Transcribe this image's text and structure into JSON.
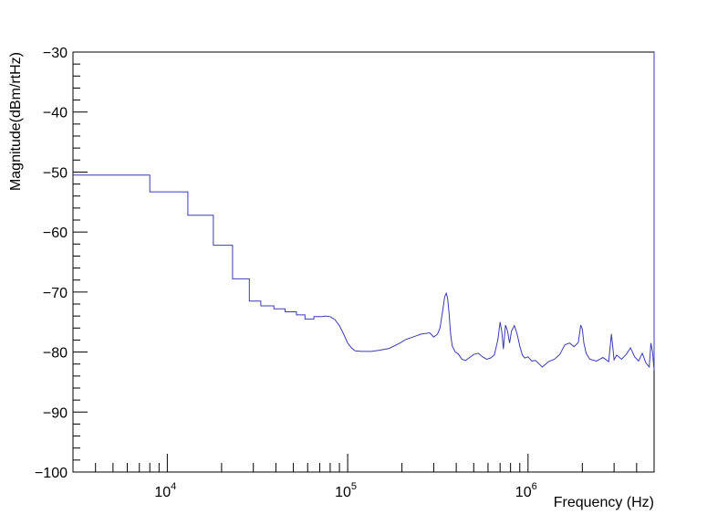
{
  "chart_data": {
    "type": "line",
    "xlabel": "Frequency (Hz)",
    "ylabel": "Magnitude(dBm/rtHz)",
    "x_scale": "log",
    "xlim": [
      3000,
      5000000
    ],
    "ylim": [
      -100,
      -30
    ],
    "y_ticks": [
      {
        "value": -30,
        "label": "−30"
      },
      {
        "value": -40,
        "label": "−40"
      },
      {
        "value": -50,
        "label": "−50"
      },
      {
        "value": -60,
        "label": "−60"
      },
      {
        "value": -70,
        "label": "−70"
      },
      {
        "value": -80,
        "label": "−80"
      },
      {
        "value": -90,
        "label": "−90"
      },
      {
        "value": -100,
        "label": "−100"
      }
    ],
    "x_ticks": [
      {
        "value": 10000,
        "base": "10",
        "exp": "4"
      },
      {
        "value": 100000,
        "base": "10",
        "exp": "5"
      },
      {
        "value": 1000000,
        "base": "10",
        "exp": "6"
      }
    ],
    "line_color": "#3b3bb3",
    "grid": false,
    "series": [
      {
        "x": [
          3000,
          8000,
          8000,
          13000,
          13000,
          18000,
          18000,
          23000,
          23000,
          28500,
          28500,
          33000,
          33000,
          39000,
          39000,
          45000,
          45000,
          52000,
          52000,
          58000,
          58000,
          65000,
          65000,
          72000,
          75000,
          80000,
          85000,
          90000,
          95000,
          100000,
          105000,
          110000,
          120000,
          135000,
          150000,
          170000,
          195000,
          210000,
          225000,
          240000,
          255000,
          270000,
          285000,
          300000,
          315000,
          325000,
          335000,
          345000,
          352000,
          358000,
          365000,
          372000,
          380000,
          395000,
          410000,
          430000,
          450000,
          470000,
          500000,
          530000,
          560000,
          590000,
          620000,
          650000,
          680000,
          700000,
          715000,
          730000,
          750000,
          770000,
          790000,
          810000,
          840000,
          870000,
          900000,
          930000,
          960000,
          1000000,
          1050000,
          1100000,
          1200000,
          1300000,
          1400000,
          1500000,
          1600000,
          1700000,
          1800000,
          1900000,
          1960000,
          2000000,
          2040000,
          2100000,
          2200000,
          2400000,
          2600000,
          2800000,
          2900000,
          3000000,
          3100000,
          3300000,
          3500000,
          3700000,
          3900000,
          4100000,
          4300000,
          4500000,
          4700000,
          4800000,
          4900000,
          5000000,
          5000000
        ],
        "y": [
          -50.5,
          -50.5,
          -53.3,
          -53.3,
          -57.2,
          -57.2,
          -62.2,
          -62.2,
          -67.8,
          -67.8,
          -71.5,
          -71.5,
          -72.3,
          -72.3,
          -72.8,
          -72.8,
          -73.3,
          -73.3,
          -73.8,
          -73.8,
          -74.5,
          -74.5,
          -74.1,
          -74.1,
          -74.0,
          -74.1,
          -74.6,
          -75.6,
          -77.0,
          -78.5,
          -79.3,
          -79.8,
          -79.9,
          -79.9,
          -79.7,
          -79.4,
          -78.5,
          -77.9,
          -77.6,
          -77.3,
          -77.0,
          -76.9,
          -76.8,
          -77.5,
          -77.0,
          -76.0,
          -73.5,
          -70.8,
          -70.2,
          -71.0,
          -73.5,
          -77.0,
          -79.0,
          -80.0,
          -80.3,
          -81.2,
          -81.4,
          -81.0,
          -80.4,
          -80.2,
          -80.8,
          -81.2,
          -81.0,
          -80.5,
          -78.0,
          -75.0,
          -76.5,
          -79.5,
          -75.5,
          -76.5,
          -78.5,
          -76.5,
          -75.6,
          -77.0,
          -79.0,
          -80.5,
          -81.0,
          -80.8,
          -81.5,
          -81.4,
          -82.5,
          -81.6,
          -81.2,
          -80.4,
          -78.8,
          -78.5,
          -79.1,
          -78.4,
          -75.5,
          -76.2,
          -78.5,
          -80.2,
          -81.2,
          -81.5,
          -80.9,
          -81.6,
          -77.0,
          -81.3,
          -80.5,
          -81.2,
          -80.4,
          -79.3,
          -80.8,
          -81.5,
          -80.2,
          -81.8,
          -82.5,
          -78.5,
          -80.0,
          -83.0,
          -30.0
        ]
      }
    ]
  }
}
